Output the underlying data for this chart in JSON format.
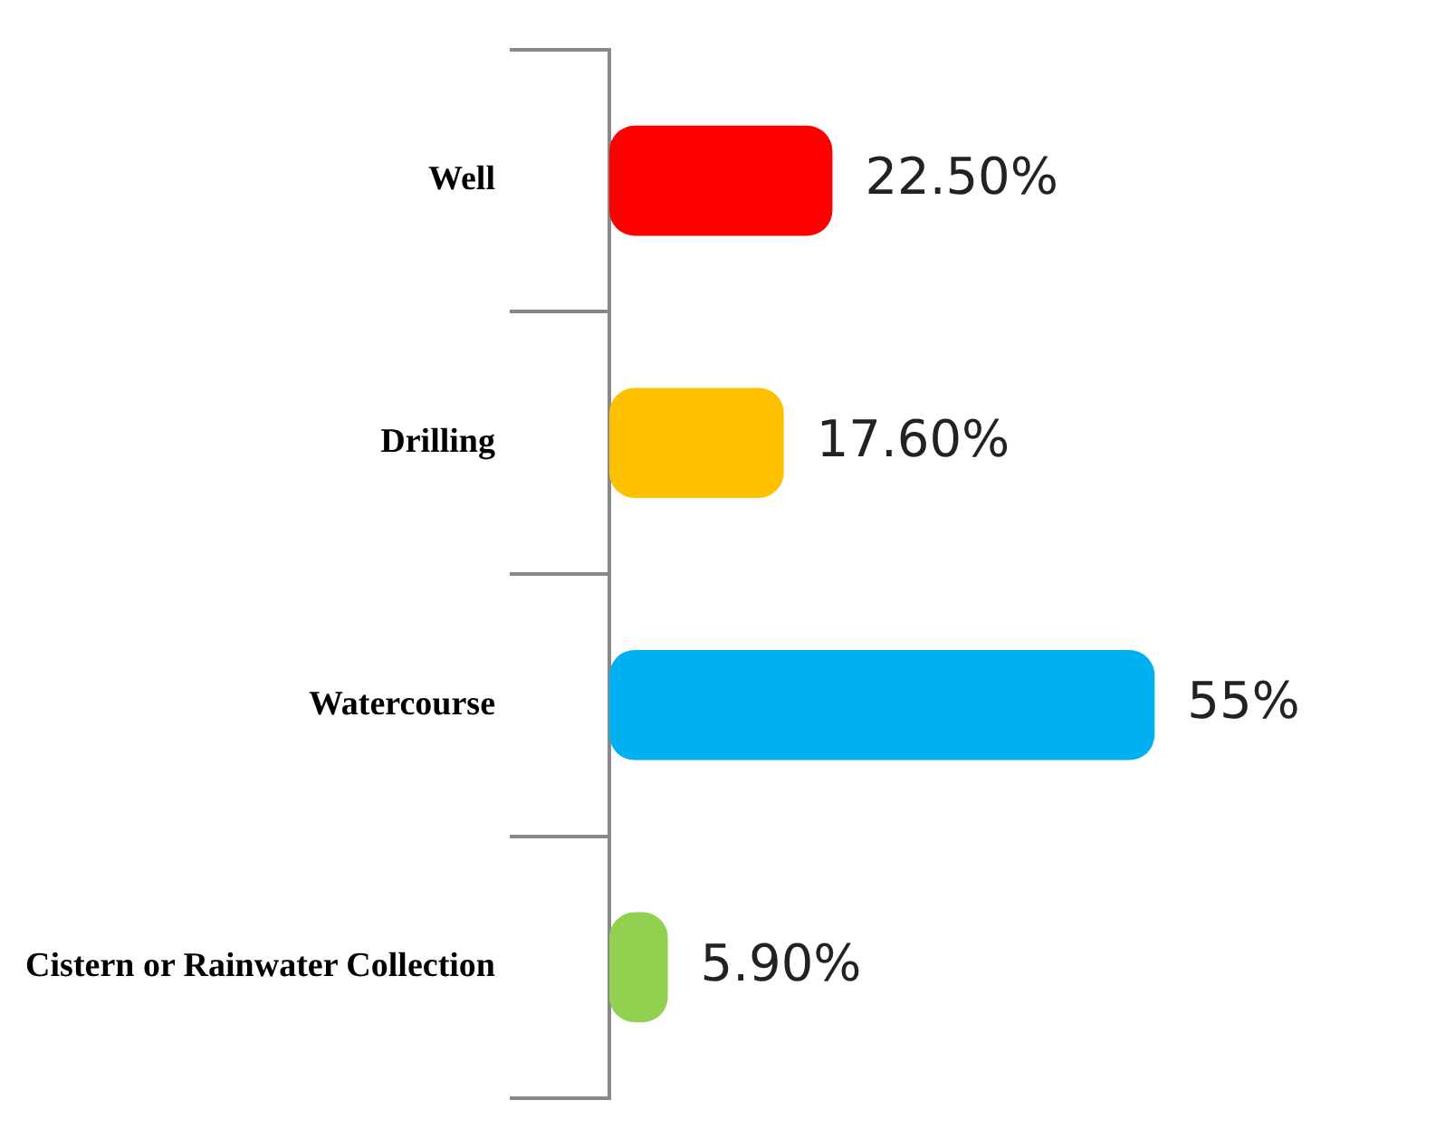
{
  "chart_data": {
    "type": "bar",
    "orientation": "horizontal",
    "categories": [
      "Well",
      "Drilling",
      "Watercourse",
      "Cistern or Rainwater Collection"
    ],
    "values": [
      22.5,
      17.6,
      55,
      5.9
    ],
    "colors": [
      "#ff0000",
      "#ffc000",
      "#00b0f0",
      "#92d050"
    ],
    "value_labels": [
      "22.50%",
      "17.60%",
      "55%",
      "5.90%"
    ]
  }
}
